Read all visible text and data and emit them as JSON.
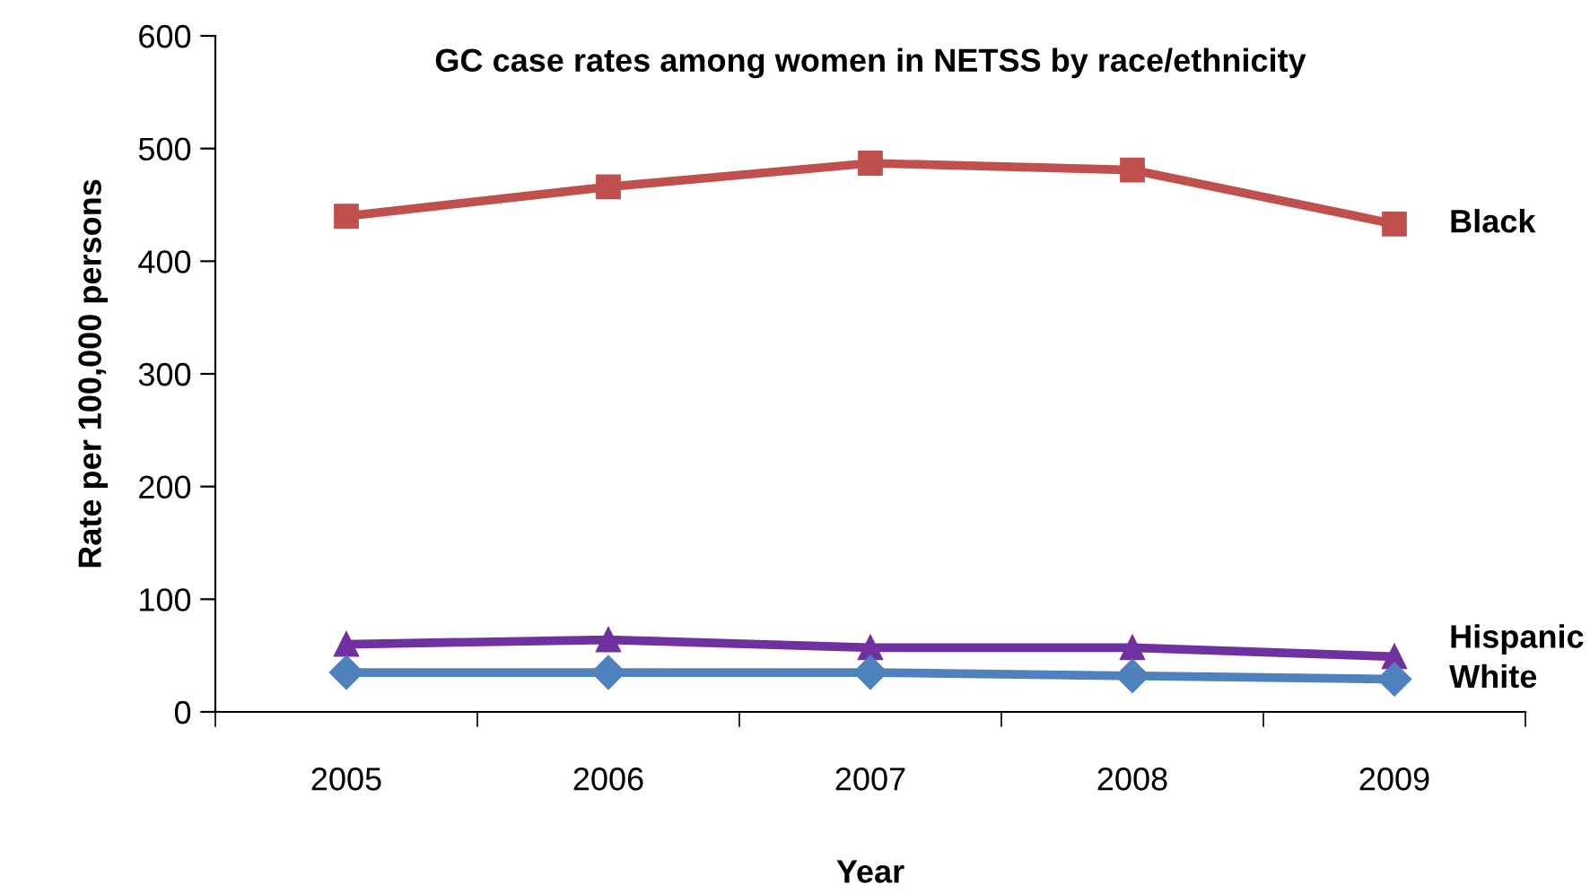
{
  "chart_data": {
    "type": "line",
    "title": "GC case rates among women in NETSS by race/ethnicity",
    "xlabel": "Year",
    "ylabel": "Rate per 100,000 persons",
    "categories": [
      "2005",
      "2006",
      "2007",
      "2008",
      "2009"
    ],
    "series": [
      {
        "name": "Black",
        "color": "#c0504d",
        "marker": "square",
        "values": [
          440,
          466,
          487,
          481,
          433
        ]
      },
      {
        "name": "Hispanic",
        "color": "#7030a0",
        "marker": "triangle",
        "values": [
          60,
          64,
          57,
          57,
          49
        ]
      },
      {
        "name": "White",
        "color": "#4f81bd",
        "marker": "diamond",
        "values": [
          35,
          35,
          35,
          32,
          29
        ]
      }
    ],
    "ylim": [
      0,
      600
    ],
    "yticks": [
      0,
      100,
      200,
      300,
      400,
      500,
      600
    ],
    "grid": false,
    "legend": false,
    "line_style": "solid"
  }
}
